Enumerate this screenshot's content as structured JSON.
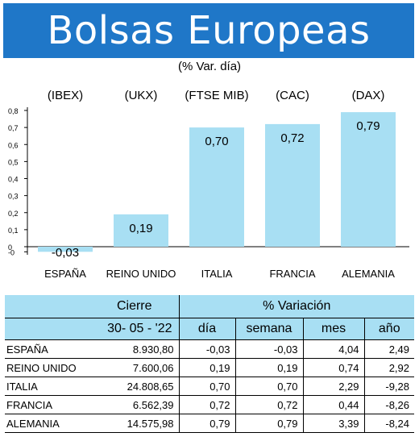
{
  "title": "Bolsas Europeas",
  "subtitle": "(% Var. día)",
  "chart_data": {
    "type": "bar",
    "codes": [
      "(IBEX)",
      "(UKX)",
      "(FTSE MIB)",
      "(CAC)",
      "(DAX)"
    ],
    "categories": [
      "ESPAÑA",
      "REINO UNIDO",
      "ITALIA",
      "FRANCIA",
      "ALEMANIA"
    ],
    "values": [
      -0.03,
      0.19,
      0.7,
      0.72,
      0.79
    ],
    "value_labels": [
      "-0,03",
      "0,19",
      "0,70",
      "0,72",
      "0,79"
    ],
    "yticks": [
      "0,8",
      "0,7",
      "0,6",
      "0,5",
      "0,4",
      "0,3",
      "0,2",
      "0,1",
      "0",
      "-0"
    ],
    "ylim": [
      -0.03,
      0.8
    ],
    "bar_color": "#a8dff3"
  },
  "table": {
    "header_cierre": "Cierre",
    "header_variacion": "% Variación",
    "date": "30- 05 - '22",
    "col_dia": "día",
    "col_semana": "semana",
    "col_mes": "mes",
    "col_ano": "año",
    "rows": [
      {
        "name": "ESPAÑA",
        "cierre": "8.930,80",
        "dia": "-0,03",
        "semana": "-0,03",
        "mes": "4,04",
        "ano": "2,49"
      },
      {
        "name": "REINO UNIDO",
        "cierre": "7.600,06",
        "dia": "0,19",
        "semana": "0,19",
        "mes": "0,74",
        "ano": "2,92"
      },
      {
        "name": "ITALIA",
        "cierre": "24.808,65",
        "dia": "0,70",
        "semana": "0,70",
        "mes": "2,29",
        "ano": "-9,28"
      },
      {
        "name": "FRANCIA",
        "cierre": "6.562,39",
        "dia": "0,72",
        "semana": "0,72",
        "mes": "0,44",
        "ano": "-8,26"
      },
      {
        "name": "ALEMANIA",
        "cierre": "14.575,98",
        "dia": "0,79",
        "semana": "0,79",
        "mes": "3,39",
        "ano": "-8,24"
      }
    ]
  }
}
